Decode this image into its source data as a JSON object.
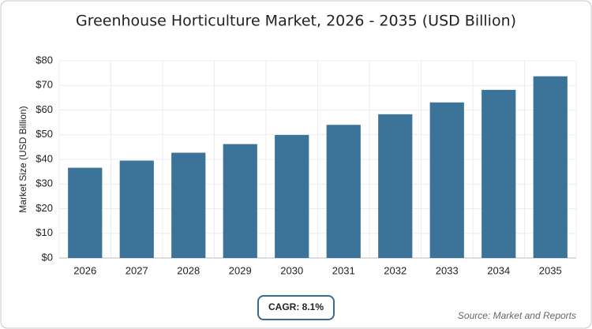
{
  "chart_data": {
    "type": "bar",
    "title": "Greenhouse Horticulture Market, 2026 - 2035 (USD Billion)",
    "y_label": "Market Size (USD Billion)",
    "categories": [
      "2026",
      "2027",
      "2028",
      "2029",
      "2030",
      "2031",
      "2032",
      "2033",
      "2034",
      "2035"
    ],
    "values": [
      36.6,
      39.5,
      42.7,
      46.2,
      49.9,
      54.0,
      58.3,
      63.1,
      68.2,
      73.7
    ],
    "color": "#3b7399",
    "ylim": [
      0,
      80
    ],
    "yticks": [
      {
        "value": 0,
        "label": "$0"
      },
      {
        "value": 10,
        "label": "$10"
      },
      {
        "value": 20,
        "label": "$20"
      },
      {
        "value": 30,
        "label": "$30"
      },
      {
        "value": 40,
        "label": "$40"
      },
      {
        "value": 50,
        "label": "$50"
      },
      {
        "value": 60,
        "label": "$60"
      },
      {
        "value": 70,
        "label": "$70"
      },
      {
        "value": 80,
        "label": "$80"
      }
    ],
    "grid": true,
    "annotation": "CAGR: 8.1%",
    "source": "Source: Market and Reports"
  }
}
